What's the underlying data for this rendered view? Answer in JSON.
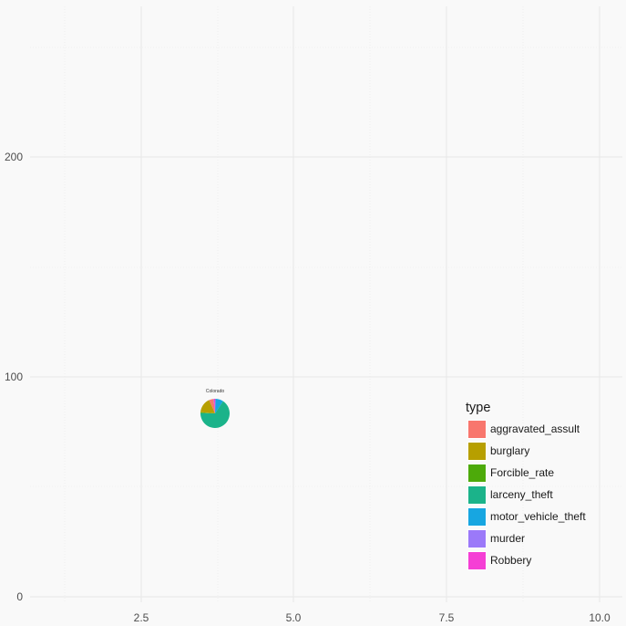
{
  "chart_data": {
    "type": "pie",
    "title": "",
    "xlabel": "",
    "ylabel": "",
    "xlim": [
      0.75,
      10.25
    ],
    "ylim": [
      0,
      260
    ],
    "x_ticks": [
      "2.5",
      "5.0",
      "7.5",
      "10.0"
    ],
    "y_ticks": [
      "0",
      "100",
      "200"
    ],
    "grid": true,
    "legend_position": "right-inside",
    "legend_title": "type",
    "pies": [
      {
        "label": "Colorado",
        "x": 3.7,
        "y": 83,
        "slices": [
          {
            "type": "aggravated_assult",
            "share": 0.05
          },
          {
            "type": "burglary",
            "share": 0.17
          },
          {
            "type": "Forcible_rate",
            "share": 0.01
          },
          {
            "type": "larceny_theft",
            "share": 0.66
          },
          {
            "type": "motor_vehicle_theft",
            "share": 0.09
          },
          {
            "type": "murder",
            "share": 0.005
          },
          {
            "type": "Robbery",
            "share": 0.015
          }
        ]
      }
    ]
  },
  "legend": {
    "title": "type",
    "items": [
      {
        "label": "aggravated_assult",
        "color": "#f8766d"
      },
      {
        "label": "burglary",
        "color": "#b79f00"
      },
      {
        "label": "Forcible_rate",
        "color": "#4daa0a"
      },
      {
        "label": "larceny_theft",
        "color": "#1bb38a"
      },
      {
        "label": "motor_vehicle_theft",
        "color": "#17a6e1"
      },
      {
        "label": "murder",
        "color": "#9b79f9"
      },
      {
        "label": "Robbery",
        "color": "#f53fd5"
      }
    ]
  },
  "axes": {
    "x_labels": [
      "2.5",
      "5.0",
      "7.5",
      "10.0"
    ],
    "y_labels": [
      "0",
      "100",
      "200"
    ]
  },
  "pie_label": "Colorado",
  "colors": {
    "background": "#f9f9f9",
    "grid_major": "#ebebeb",
    "grid_minor": "#f1f1f1"
  }
}
